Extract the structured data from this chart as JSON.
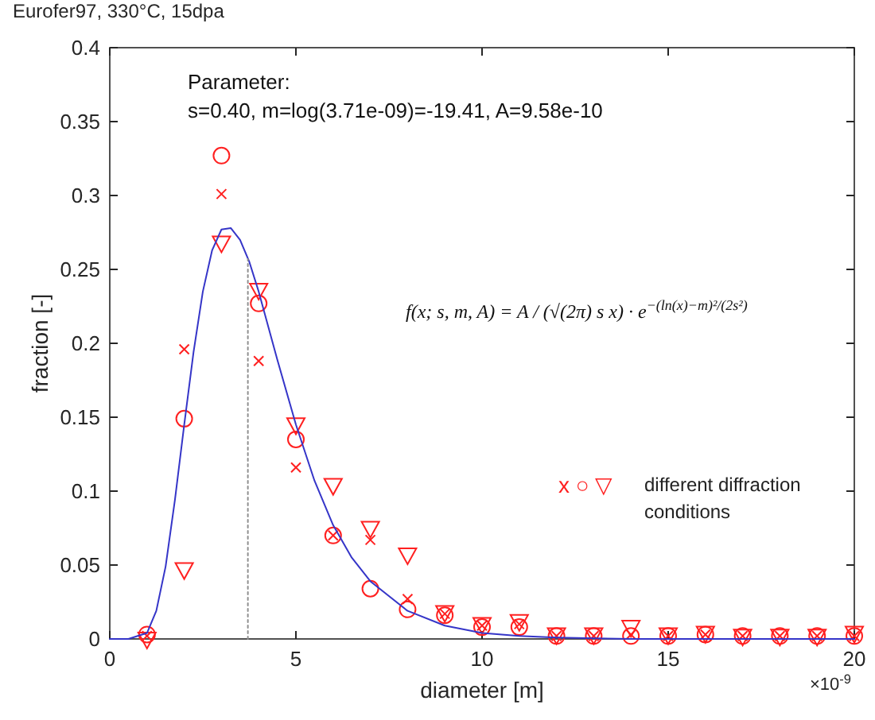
{
  "chart_data": {
    "type": "scatter",
    "title": "Eurofer97, 330°C, 15dpa",
    "xlabel": "diameter [m]",
    "ylabel": "fraction [-]",
    "x": [
      1,
      2,
      3,
      4,
      5,
      6,
      7,
      8,
      9,
      10,
      11,
      12,
      13,
      14,
      15,
      16,
      17,
      18,
      19,
      20
    ],
    "xlim": [
      0,
      20
    ],
    "xticks": [
      0,
      5,
      10,
      15,
      20
    ],
    "ylim": [
      0,
      0.4
    ],
    "yticks": [
      0,
      0.05,
      0.1,
      0.15,
      0.2,
      0.25,
      0.3,
      0.35,
      0.4
    ],
    "grid": false,
    "annotations": [
      "x ○ ▽",
      "different diffraction conditions",
      "Parameter:",
      "s=0.40, m=log(3.71e-09)=-19.41, A=9.58e-10",
      "f(x; s, m, A) = A / (√(2π) s x) · e$^{−(ln(x)−m)²/(2s²)}$",
      "×10$^{-9}$"
    ],
    "series": [
      {
        "marker": "cross",
        "color": "#ff2020",
        "values": [
          0.002,
          0.196,
          0.301,
          0.188,
          0.116,
          0.07,
          0.067,
          0.027,
          0.017,
          0.009,
          0.01,
          0.002,
          0.002,
          0.003,
          0.002,
          0.003,
          0.002,
          0.002,
          0.002,
          0.002
        ]
      },
      {
        "marker": "circle",
        "color": "#ff2020",
        "values": [
          0.003,
          0.149,
          0.327,
          0.227,
          0.135,
          0.07,
          0.034,
          0.02,
          0.016,
          0.008,
          0.008,
          0.002,
          0.002,
          0.002,
          0.002,
          0.003,
          0.002,
          0.002,
          0.002,
          0.002
        ]
      },
      {
        "marker": "triangle",
        "color": "#ff2020",
        "values": [
          0,
          0.047,
          0.268,
          0.236,
          0.145,
          0.104,
          0.075,
          0.057,
          0.018,
          0.01,
          0.012,
          0.003,
          0.003,
          0.008,
          0.003,
          0.004,
          0.002,
          0.002,
          0.002,
          0.004
        ]
      },
      {
        "type": "line",
        "color": "#3535c8",
        "line_style": "solid",
        "marker": "none",
        "x": [
          0,
          0.5,
          1,
          1.25,
          1.5,
          1.75,
          2,
          2.25,
          2.5,
          2.75,
          3,
          3.25,
          3.5,
          3.75,
          4,
          4.5,
          5,
          5.5,
          6,
          6.5,
          7,
          8,
          9,
          10,
          11,
          12,
          14,
          16,
          20
        ],
        "values": [
          0,
          0,
          0.004,
          0.019,
          0.049,
          0.094,
          0.145,
          0.194,
          0.235,
          0.263,
          0.277,
          0.278,
          0.27,
          0.255,
          0.235,
          0.189,
          0.145,
          0.107,
          0.077,
          0.055,
          0.039,
          0.019,
          0.009,
          0.004,
          0.002,
          0.001,
          0,
          0,
          0
        ]
      },
      {
        "type": "line",
        "color": "#909090",
        "line_style": "dotted",
        "marker": "none",
        "x": [
          3.71,
          3.71
        ],
        "values": [
          0,
          0.257
        ]
      }
    ]
  }
}
